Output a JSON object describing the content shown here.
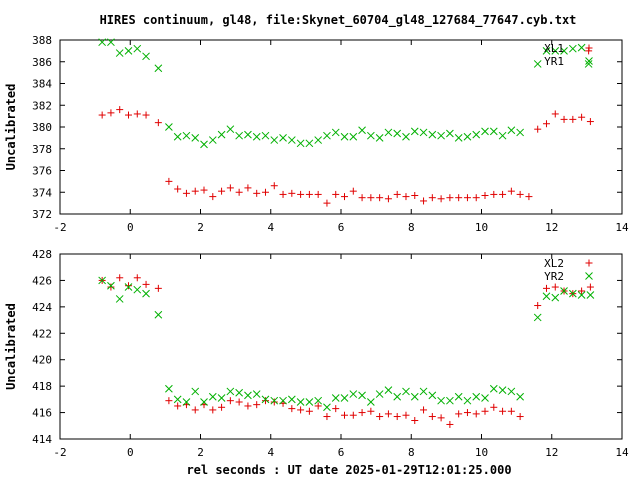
{
  "title": "HIRES continuum, gl48, file:Skynet_60704_gl48_127684_77647.cyb.txt",
  "colors": {
    "red": "#e00000",
    "green": "#00b000",
    "axis": "#000000"
  },
  "chart_data": [
    {
      "type": "scatter",
      "ylabel": "Uncalibrated",
      "xlabel": "",
      "xlim": [
        -2,
        14
      ],
      "ylim": [
        372,
        388
      ],
      "xticks": [
        "-2",
        "0",
        "2",
        "4",
        "6",
        "8",
        "10",
        "12",
        "14"
      ],
      "yticks": [
        "372",
        "374",
        "376",
        "378",
        "380",
        "382",
        "384",
        "386",
        "388"
      ],
      "legend_position": "top-right",
      "series": [
        {
          "name": "XL1",
          "marker": "plus",
          "color": "#e00000",
          "points": [
            [
              -0.8,
              381.1
            ],
            [
              -0.55,
              381.3
            ],
            [
              -0.3,
              381.6
            ],
            [
              -0.05,
              381.1
            ],
            [
              0.2,
              381.2
            ],
            [
              0.45,
              381.1
            ],
            [
              0.8,
              380.4
            ],
            [
              1.1,
              375.0
            ],
            [
              1.35,
              374.3
            ],
            [
              1.6,
              373.9
            ],
            [
              1.85,
              374.1
            ],
            [
              2.1,
              374.2
            ],
            [
              2.35,
              373.6
            ],
            [
              2.6,
              374.1
            ],
            [
              2.85,
              374.4
            ],
            [
              3.1,
              374.0
            ],
            [
              3.35,
              374.4
            ],
            [
              3.6,
              373.9
            ],
            [
              3.85,
              374.0
            ],
            [
              4.1,
              374.6
            ],
            [
              4.35,
              373.8
            ],
            [
              4.6,
              373.9
            ],
            [
              4.85,
              373.8
            ],
            [
              5.1,
              373.8
            ],
            [
              5.35,
              373.8
            ],
            [
              5.6,
              373.0
            ],
            [
              5.85,
              373.8
            ],
            [
              6.1,
              373.6
            ],
            [
              6.35,
              374.1
            ],
            [
              6.6,
              373.5
            ],
            [
              6.85,
              373.5
            ],
            [
              7.1,
              373.5
            ],
            [
              7.35,
              373.4
            ],
            [
              7.6,
              373.8
            ],
            [
              7.85,
              373.6
            ],
            [
              8.1,
              373.7
            ],
            [
              8.35,
              373.2
            ],
            [
              8.6,
              373.5
            ],
            [
              8.85,
              373.4
            ],
            [
              9.1,
              373.5
            ],
            [
              9.35,
              373.5
            ],
            [
              9.6,
              373.5
            ],
            [
              9.85,
              373.5
            ],
            [
              10.1,
              373.7
            ],
            [
              10.35,
              373.8
            ],
            [
              10.6,
              373.8
            ],
            [
              10.85,
              374.1
            ],
            [
              11.1,
              373.8
            ],
            [
              11.35,
              373.6
            ],
            [
              11.6,
              379.8
            ],
            [
              11.85,
              380.3
            ],
            [
              12.1,
              381.2
            ],
            [
              12.35,
              380.7
            ],
            [
              12.6,
              380.7
            ],
            [
              12.85,
              380.9
            ],
            [
              13.1,
              380.5
            ],
            [
              13.05,
              387.0
            ]
          ]
        },
        {
          "name": "YR1",
          "marker": "cross",
          "color": "#00b000",
          "points": [
            [
              -0.8,
              387.8
            ],
            [
              -0.55,
              387.8
            ],
            [
              -0.3,
              386.8
            ],
            [
              -0.05,
              387.0
            ],
            [
              0.2,
              387.2
            ],
            [
              0.45,
              386.5
            ],
            [
              0.8,
              385.4
            ],
            [
              1.1,
              380.0
            ],
            [
              1.35,
              379.1
            ],
            [
              1.6,
              379.2
            ],
            [
              1.85,
              379.0
            ],
            [
              2.1,
              378.4
            ],
            [
              2.35,
              378.8
            ],
            [
              2.6,
              379.3
            ],
            [
              2.85,
              379.8
            ],
            [
              3.1,
              379.2
            ],
            [
              3.35,
              379.3
            ],
            [
              3.6,
              379.1
            ],
            [
              3.85,
              379.2
            ],
            [
              4.1,
              378.8
            ],
            [
              4.35,
              379.0
            ],
            [
              4.6,
              378.8
            ],
            [
              4.85,
              378.5
            ],
            [
              5.1,
              378.5
            ],
            [
              5.35,
              378.8
            ],
            [
              5.6,
              379.2
            ],
            [
              5.85,
              379.5
            ],
            [
              6.1,
              379.1
            ],
            [
              6.35,
              379.1
            ],
            [
              6.6,
              379.7
            ],
            [
              6.85,
              379.2
            ],
            [
              7.1,
              379.0
            ],
            [
              7.35,
              379.5
            ],
            [
              7.6,
              379.4
            ],
            [
              7.85,
              379.1
            ],
            [
              8.1,
              379.6
            ],
            [
              8.35,
              379.5
            ],
            [
              8.6,
              379.3
            ],
            [
              8.85,
              379.2
            ],
            [
              9.1,
              379.4
            ],
            [
              9.35,
              379.0
            ],
            [
              9.6,
              379.1
            ],
            [
              9.85,
              379.3
            ],
            [
              10.1,
              379.6
            ],
            [
              10.35,
              379.6
            ],
            [
              10.6,
              379.2
            ],
            [
              10.85,
              379.7
            ],
            [
              11.1,
              379.5
            ],
            [
              11.6,
              385.8
            ],
            [
              11.85,
              387.0
            ],
            [
              12.1,
              387.0
            ],
            [
              12.35,
              387.0
            ],
            [
              12.6,
              387.2
            ],
            [
              12.85,
              387.3
            ],
            [
              13.05,
              385.8
            ]
          ]
        }
      ]
    },
    {
      "type": "scatter",
      "ylabel": "Uncalibrated",
      "xlabel": "rel seconds : UT date 2025-01-29T12:01:25.000",
      "xlim": [
        -2,
        14
      ],
      "ylim": [
        414,
        428
      ],
      "xticks": [
        "-2",
        "0",
        "2",
        "4",
        "6",
        "8",
        "10",
        "12",
        "14"
      ],
      "yticks": [
        "414",
        "416",
        "418",
        "420",
        "422",
        "424",
        "426",
        "428"
      ],
      "legend_position": "top-right",
      "series": [
        {
          "name": "XL2",
          "marker": "plus",
          "color": "#e00000",
          "points": [
            [
              -0.8,
              426.0
            ],
            [
              -0.55,
              425.5
            ],
            [
              -0.3,
              426.2
            ],
            [
              -0.05,
              425.6
            ],
            [
              0.2,
              426.2
            ],
            [
              0.45,
              425.7
            ],
            [
              0.8,
              425.4
            ],
            [
              1.1,
              416.9
            ],
            [
              1.35,
              416.5
            ],
            [
              1.6,
              416.6
            ],
            [
              1.85,
              416.2
            ],
            [
              2.1,
              416.6
            ],
            [
              2.35,
              416.2
            ],
            [
              2.6,
              416.4
            ],
            [
              2.85,
              416.9
            ],
            [
              3.1,
              416.8
            ],
            [
              3.35,
              416.5
            ],
            [
              3.6,
              416.6
            ],
            [
              3.85,
              416.9
            ],
            [
              4.1,
              416.8
            ],
            [
              4.35,
              416.7
            ],
            [
              4.6,
              416.3
            ],
            [
              4.85,
              416.2
            ],
            [
              5.1,
              416.1
            ],
            [
              5.35,
              416.5
            ],
            [
              5.6,
              415.7
            ],
            [
              5.85,
              416.3
            ],
            [
              6.1,
              415.8
            ],
            [
              6.35,
              415.8
            ],
            [
              6.6,
              416.0
            ],
            [
              6.85,
              416.1
            ],
            [
              7.1,
              415.7
            ],
            [
              7.35,
              415.9
            ],
            [
              7.6,
              415.7
            ],
            [
              7.85,
              415.8
            ],
            [
              8.1,
              415.4
            ],
            [
              8.35,
              416.2
            ],
            [
              8.6,
              415.7
            ],
            [
              8.85,
              415.6
            ],
            [
              9.1,
              415.1
            ],
            [
              9.35,
              415.9
            ],
            [
              9.6,
              416.0
            ],
            [
              9.85,
              415.9
            ],
            [
              10.1,
              416.1
            ],
            [
              10.35,
              416.4
            ],
            [
              10.6,
              416.1
            ],
            [
              10.85,
              416.1
            ],
            [
              11.1,
              415.7
            ],
            [
              11.6,
              424.1
            ],
            [
              11.85,
              425.4
            ],
            [
              12.1,
              425.5
            ],
            [
              12.35,
              425.2
            ],
            [
              12.6,
              425.0
            ],
            [
              12.85,
              425.2
            ],
            [
              13.1,
              425.5
            ]
          ]
        },
        {
          "name": "YR2",
          "marker": "cross",
          "color": "#00b000",
          "points": [
            [
              -0.8,
              426.0
            ],
            [
              -0.55,
              425.6
            ],
            [
              -0.3,
              424.6
            ],
            [
              -0.05,
              425.5
            ],
            [
              0.2,
              425.3
            ],
            [
              0.45,
              425.0
            ],
            [
              0.8,
              423.4
            ],
            [
              1.1,
              417.8
            ],
            [
              1.35,
              417.0
            ],
            [
              1.6,
              416.8
            ],
            [
              1.85,
              417.6
            ],
            [
              2.1,
              416.8
            ],
            [
              2.35,
              417.2
            ],
            [
              2.6,
              417.1
            ],
            [
              2.85,
              417.6
            ],
            [
              3.1,
              417.5
            ],
            [
              3.35,
              417.3
            ],
            [
              3.6,
              417.4
            ],
            [
              3.85,
              417.0
            ],
            [
              4.1,
              416.9
            ],
            [
              4.35,
              416.9
            ],
            [
              4.6,
              417.0
            ],
            [
              4.85,
              416.8
            ],
            [
              5.1,
              416.8
            ],
            [
              5.35,
              416.9
            ],
            [
              5.6,
              416.4
            ],
            [
              5.85,
              417.1
            ],
            [
              6.1,
              417.1
            ],
            [
              6.35,
              417.4
            ],
            [
              6.6,
              417.3
            ],
            [
              6.85,
              416.8
            ],
            [
              7.1,
              417.4
            ],
            [
              7.35,
              417.7
            ],
            [
              7.6,
              417.2
            ],
            [
              7.85,
              417.6
            ],
            [
              8.1,
              417.2
            ],
            [
              8.35,
              417.6
            ],
            [
              8.6,
              417.3
            ],
            [
              8.85,
              416.9
            ],
            [
              9.1,
              416.9
            ],
            [
              9.35,
              417.2
            ],
            [
              9.6,
              416.9
            ],
            [
              9.85,
              417.2
            ],
            [
              10.1,
              417.1
            ],
            [
              10.35,
              417.8
            ],
            [
              10.6,
              417.7
            ],
            [
              10.85,
              417.6
            ],
            [
              11.1,
              417.2
            ],
            [
              11.6,
              423.2
            ],
            [
              11.85,
              424.8
            ],
            [
              12.1,
              424.7
            ],
            [
              12.35,
              425.2
            ],
            [
              12.6,
              425.0
            ],
            [
              12.85,
              424.9
            ],
            [
              13.1,
              424.9
            ]
          ]
        }
      ]
    }
  ]
}
